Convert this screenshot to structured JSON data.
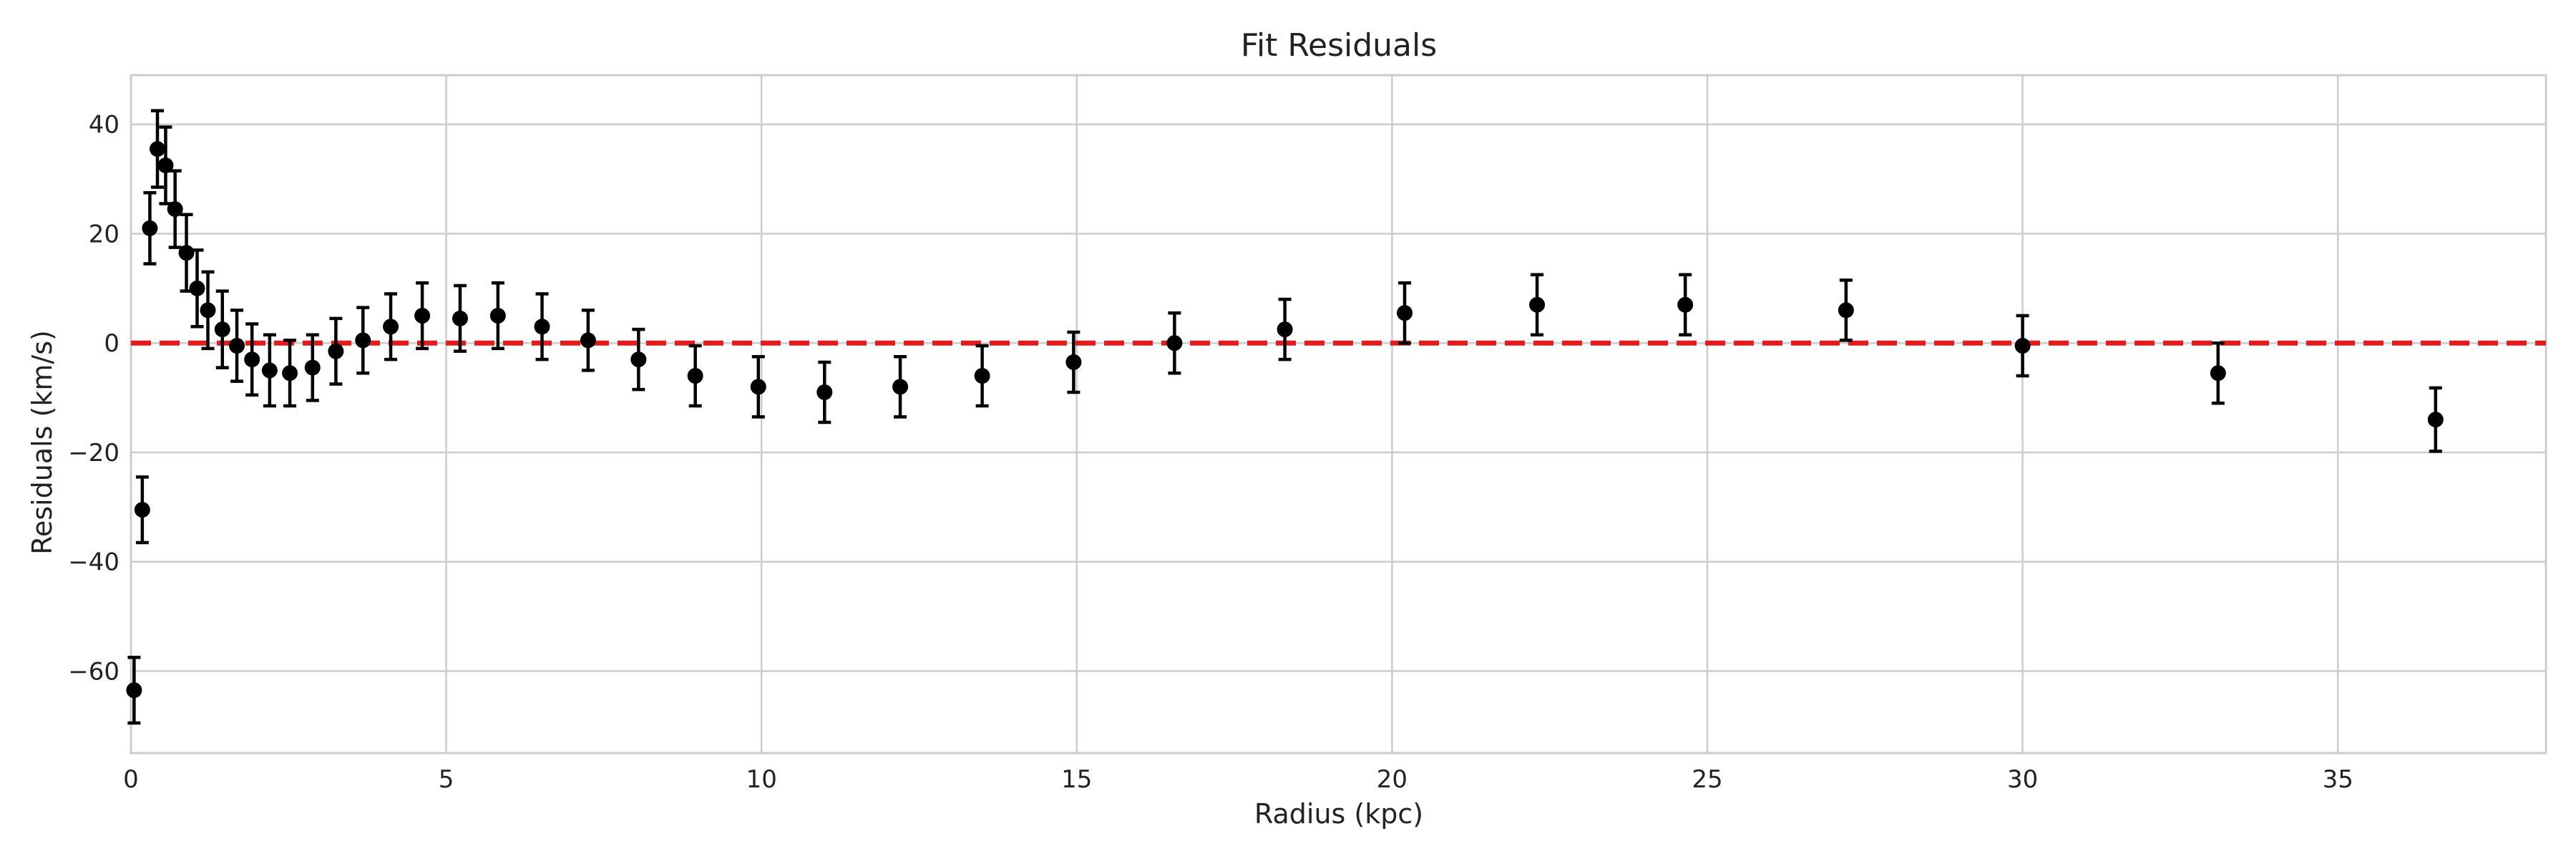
{
  "chart_data": {
    "type": "scatter",
    "title": "Fit Residuals",
    "xlabel": "Radius (kpc)",
    "ylabel": "Residuals (km/s)",
    "xlim": [
      0,
      38.3
    ],
    "ylim": [
      -75,
      49
    ],
    "xticks": [
      0,
      5,
      10,
      15,
      20,
      25,
      30,
      35
    ],
    "yticks": [
      -60,
      -40,
      -20,
      0,
      20,
      40
    ],
    "xtick_labels": [
      "0",
      "5",
      "10",
      "15",
      "20",
      "25",
      "30",
      "35"
    ],
    "ytick_labels": [
      "−60",
      "−40",
      "−20",
      "0",
      "20",
      "40"
    ],
    "grid": true,
    "reference_line": {
      "y": 0,
      "style": "dashed",
      "color": "#e41a1c"
    },
    "marker_color": "#000000",
    "points": [
      {
        "x": 0.05,
        "y": -63.5,
        "err": 6
      },
      {
        "x": 0.18,
        "y": -30.5,
        "err": 6
      },
      {
        "x": 0.3,
        "y": 21,
        "err": 6.5
      },
      {
        "x": 0.42,
        "y": 35.5,
        "err": 7
      },
      {
        "x": 0.55,
        "y": 32.5,
        "err": 7
      },
      {
        "x": 0.7,
        "y": 24.5,
        "err": 7
      },
      {
        "x": 0.88,
        "y": 16.5,
        "err": 7
      },
      {
        "x": 1.05,
        "y": 10,
        "err": 7
      },
      {
        "x": 1.22,
        "y": 6,
        "err": 7
      },
      {
        "x": 1.45,
        "y": 2.5,
        "err": 7
      },
      {
        "x": 1.68,
        "y": -0.5,
        "err": 6.5
      },
      {
        "x": 1.92,
        "y": -3,
        "err": 6.5
      },
      {
        "x": 2.2,
        "y": -5,
        "err": 6.5
      },
      {
        "x": 2.52,
        "y": -5.5,
        "err": 6
      },
      {
        "x": 2.88,
        "y": -4.5,
        "err": 6
      },
      {
        "x": 3.25,
        "y": -1.5,
        "err": 6
      },
      {
        "x": 3.68,
        "y": 0.5,
        "err": 6
      },
      {
        "x": 4.12,
        "y": 3,
        "err": 6
      },
      {
        "x": 4.62,
        "y": 5,
        "err": 6
      },
      {
        "x": 5.22,
        "y": 4.5,
        "err": 6
      },
      {
        "x": 5.82,
        "y": 5,
        "err": 6
      },
      {
        "x": 6.52,
        "y": 3,
        "err": 6
      },
      {
        "x": 7.25,
        "y": 0.5,
        "err": 5.5
      },
      {
        "x": 8.05,
        "y": -3,
        "err": 5.5
      },
      {
        "x": 8.95,
        "y": -6,
        "err": 5.5
      },
      {
        "x": 9.95,
        "y": -8,
        "err": 5.5
      },
      {
        "x": 11.0,
        "y": -9,
        "err": 5.5
      },
      {
        "x": 12.2,
        "y": -8,
        "err": 5.5
      },
      {
        "x": 13.5,
        "y": -6,
        "err": 5.5
      },
      {
        "x": 14.95,
        "y": -3.5,
        "err": 5.5
      },
      {
        "x": 16.55,
        "y": 0,
        "err": 5.5
      },
      {
        "x": 18.3,
        "y": 2.5,
        "err": 5.5
      },
      {
        "x": 20.2,
        "y": 5.5,
        "err": 5.5
      },
      {
        "x": 22.3,
        "y": 7,
        "err": 5.5
      },
      {
        "x": 24.65,
        "y": 7,
        "err": 5.5
      },
      {
        "x": 27.2,
        "y": 6,
        "err": 5.5
      },
      {
        "x": 30.0,
        "y": -0.5,
        "err": 5.5
      },
      {
        "x": 33.1,
        "y": -5.5,
        "err": 5.5
      },
      {
        "x": 36.55,
        "y": -14,
        "err": 5.8
      }
    ]
  }
}
